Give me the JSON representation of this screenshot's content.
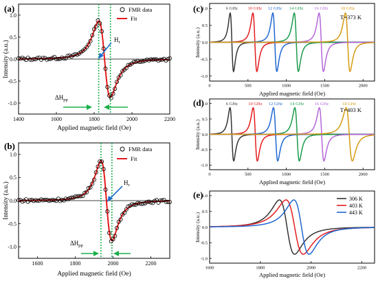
{
  "chart_data": [
    {
      "id": "a",
      "panel_label": "(a)",
      "type": "scatter",
      "xlabel": "Applied magnetic field (Oe)",
      "ylabel": "Intensity (a.u.)",
      "xlim": [
        1400,
        2200
      ],
      "ylim": [
        -1.25,
        1.25
      ],
      "xticks": [
        1400,
        1600,
        1800,
        2000,
        2200
      ],
      "yticks": [
        -1.0,
        -0.5,
        0.0,
        0.5,
        1.0
      ],
      "legend": [
        "FMR data",
        "Fit"
      ],
      "legend_position": "top-right",
      "annotations": {
        "hr": "H",
        "hr_sub": "r",
        "dh": "ΔH",
        "dh_sub": "pp"
      },
      "fit": {
        "center": 1855,
        "half_width": 31,
        "noise": 0.03
      },
      "markers": [
        1824,
        1886
      ],
      "series": [
        {
          "name": "FMR data",
          "kind": "points",
          "x_start": 1400,
          "x_end": 2200,
          "step": 10
        },
        {
          "name": "Fit",
          "kind": "line",
          "color": "#e41a1c"
        }
      ]
    },
    {
      "id": "b",
      "panel_label": "(b)",
      "type": "scatter",
      "xlabel": "Applied magnetic field (Oe)",
      "ylabel": "Intensity (a.u.)",
      "xlim": [
        1500,
        2300
      ],
      "ylim": [
        -1.25,
        1.25
      ],
      "xticks": [
        1600,
        1800,
        2000,
        2200
      ],
      "yticks": [
        -1.0,
        -0.5,
        0.0,
        0.5,
        1.0
      ],
      "legend": [
        "FMR data",
        "Fit"
      ],
      "legend_position": "top-right",
      "annotations": {
        "hr": "H",
        "hr_sub": "r",
        "dh": "ΔH",
        "dh_sub": "pp"
      },
      "fit": {
        "center": 1965,
        "half_width": 29,
        "noise": 0.03
      },
      "markers": [
        1936,
        1994
      ],
      "series": [
        {
          "name": "FMR data",
          "kind": "points",
          "x_start": 1500,
          "x_end": 2300,
          "step": 10
        },
        {
          "name": "Fit",
          "kind": "line",
          "color": "#e41a1c"
        }
      ]
    },
    {
      "id": "c",
      "panel_label": "(c)",
      "type": "line",
      "xlabel": "Applied magnetic field (Oe)",
      "ylabel": "Intensity (a.u.)",
      "xlim": [
        0,
        2150
      ],
      "ylim": [
        -1.15,
        1.15
      ],
      "xticks": [
        0,
        500,
        1000,
        1500,
        2000
      ],
      "yticks": [
        -1.0,
        -0.5,
        0.0,
        0.5,
        1.0
      ],
      "annotation": "T=373 K",
      "series": [
        {
          "name": "6 GHz",
          "center": 290,
          "half_width": 22,
          "color": "#333333"
        },
        {
          "name": "10 GHz",
          "center": 590,
          "half_width": 26,
          "color": "#e41a1c"
        },
        {
          "name": "12 GHz",
          "center": 850,
          "half_width": 26,
          "color": "#1f66d1"
        },
        {
          "name": "14 GHz",
          "center": 1130,
          "half_width": 27,
          "color": "#1a9a4a"
        },
        {
          "name": "16 GHz",
          "center": 1455,
          "half_width": 28,
          "color": "#b565d8"
        },
        {
          "name": "18 GHz",
          "center": 1800,
          "half_width": 30,
          "color": "#d49a10"
        }
      ]
    },
    {
      "id": "d",
      "panel_label": "(d)",
      "type": "line",
      "xlabel": "Applied magnetic field (Oe)",
      "ylabel": "Intensity (a.u.)",
      "xlim": [
        0,
        2150
      ],
      "ylim": [
        -1.15,
        1.15
      ],
      "xticks": [
        0,
        500,
        1000,
        1500,
        2000
      ],
      "yticks": [
        -1.0,
        -0.5,
        0.0,
        0.5,
        1.0
      ],
      "annotation": "T=403 K",
      "series": [
        {
          "name": "6 GHz",
          "center": 290,
          "half_width": 24,
          "color": "#333333"
        },
        {
          "name": "10 GHz",
          "center": 595,
          "half_width": 27,
          "color": "#e41a1c"
        },
        {
          "name": "12 GHz",
          "center": 860,
          "half_width": 28,
          "color": "#1f66d1"
        },
        {
          "name": "14 GHz",
          "center": 1140,
          "half_width": 29,
          "color": "#1a9a4a"
        },
        {
          "name": "16 GHz",
          "center": 1460,
          "half_width": 30,
          "color": "#b565d8"
        },
        {
          "name": "18 GHz",
          "center": 1820,
          "half_width": 40,
          "color": "#d49a10"
        }
      ]
    },
    {
      "id": "e",
      "panel_label": "(e)",
      "type": "line",
      "xlabel": "Applied magnetic field (Oe)",
      "ylabel": "Intensity (a.u.)",
      "xlim": [
        1600,
        2250
      ],
      "ylim": [
        -1.15,
        1.15
      ],
      "xticks": [
        1600,
        1800,
        2000,
        2200
      ],
      "yticks": [
        -1.0,
        -0.5,
        0.0,
        0.5,
        1.0
      ],
      "legend_position": "top-right",
      "series": [
        {
          "name": "306 K",
          "center": 1905,
          "half_width": 30,
          "color": "#333333"
        },
        {
          "name": "403 K",
          "center": 1935,
          "half_width": 34,
          "color": "#e41a1c"
        },
        {
          "name": "443 K",
          "center": 1962,
          "half_width": 30,
          "color": "#1f66d1"
        }
      ]
    }
  ]
}
